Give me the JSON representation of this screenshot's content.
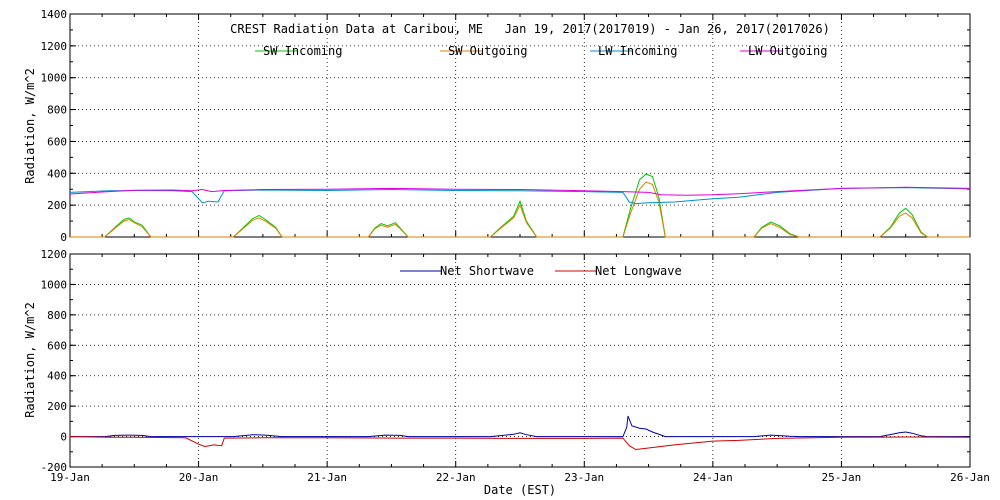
{
  "chart_data": [
    {
      "type": "line",
      "title": "CREST Radiation Data at Caribou, ME   Jan 19, 2017(2017019) - Jan 26, 2017(2017026)",
      "ylabel": "Radiation, W/m^2",
      "xlabel": "",
      "xlim": [
        0,
        7
      ],
      "ylim": [
        0,
        1400
      ],
      "yticks": [
        "0",
        "200",
        "400",
        "600",
        "800",
        "1000",
        "1200",
        "1400"
      ],
      "grid": true,
      "legend": "top, two rows in columns",
      "series": [
        {
          "name": "SW Incoming",
          "color": "#00c800",
          "points": [
            [
              0,
              0
            ],
            [
              0.27,
              0
            ],
            [
              0.35,
              60
            ],
            [
              0.42,
              110
            ],
            [
              0.46,
              120
            ],
            [
              0.5,
              95
            ],
            [
              0.56,
              75
            ],
            [
              0.63,
              0
            ],
            [
              1.27,
              0
            ],
            [
              1.35,
              60
            ],
            [
              1.42,
              115
            ],
            [
              1.47,
              135
            ],
            [
              1.52,
              110
            ],
            [
              1.6,
              60
            ],
            [
              1.65,
              0
            ],
            [
              2.32,
              0
            ],
            [
              2.37,
              55
            ],
            [
              2.42,
              85
            ],
            [
              2.47,
              70
            ],
            [
              2.53,
              90
            ],
            [
              2.57,
              55
            ],
            [
              2.63,
              0
            ],
            [
              3.27,
              0
            ],
            [
              3.35,
              60
            ],
            [
              3.45,
              130
            ],
            [
              3.5,
              225
            ],
            [
              3.55,
              100
            ],
            [
              3.63,
              0
            ],
            [
              4.3,
              0
            ],
            [
              4.36,
              180
            ],
            [
              4.43,
              360
            ],
            [
              4.48,
              395
            ],
            [
              4.53,
              380
            ],
            [
              4.58,
              250
            ],
            [
              4.63,
              0
            ],
            [
              5.32,
              0
            ],
            [
              5.38,
              60
            ],
            [
              5.45,
              95
            ],
            [
              5.52,
              70
            ],
            [
              5.6,
              20
            ],
            [
              5.67,
              0
            ],
            [
              6.3,
              0
            ],
            [
              6.38,
              60
            ],
            [
              6.45,
              150
            ],
            [
              6.5,
              180
            ],
            [
              6.55,
              140
            ],
            [
              6.62,
              30
            ],
            [
              6.67,
              0
            ],
            [
              7,
              0
            ]
          ]
        },
        {
          "name": "SW Outgoing",
          "color": "#e08000",
          "points": [
            [
              0,
              0
            ],
            [
              0.27,
              0
            ],
            [
              0.35,
              55
            ],
            [
              0.42,
              100
            ],
            [
              0.46,
              110
            ],
            [
              0.5,
              90
            ],
            [
              0.56,
              65
            ],
            [
              0.63,
              0
            ],
            [
              1.27,
              0
            ],
            [
              1.35,
              55
            ],
            [
              1.42,
              105
            ],
            [
              1.47,
              120
            ],
            [
              1.52,
              100
            ],
            [
              1.6,
              55
            ],
            [
              1.65,
              0
            ],
            [
              2.32,
              0
            ],
            [
              2.37,
              50
            ],
            [
              2.42,
              75
            ],
            [
              2.47,
              60
            ],
            [
              2.53,
              80
            ],
            [
              2.57,
              50
            ],
            [
              2.63,
              0
            ],
            [
              3.27,
              0
            ],
            [
              3.35,
              55
            ],
            [
              3.45,
              120
            ],
            [
              3.5,
              200
            ],
            [
              3.55,
              90
            ],
            [
              3.63,
              0
            ],
            [
              4.3,
              0
            ],
            [
              4.36,
              150
            ],
            [
              4.43,
              300
            ],
            [
              4.48,
              345
            ],
            [
              4.53,
              330
            ],
            [
              4.58,
              220
            ],
            [
              4.63,
              0
            ],
            [
              5.32,
              0
            ],
            [
              5.38,
              55
            ],
            [
              5.45,
              85
            ],
            [
              5.52,
              60
            ],
            [
              5.6,
              15
            ],
            [
              5.67,
              0
            ],
            [
              6.3,
              0
            ],
            [
              6.38,
              55
            ],
            [
              6.45,
              130
            ],
            [
              6.5,
              150
            ],
            [
              6.55,
              120
            ],
            [
              6.62,
              25
            ],
            [
              6.67,
              0
            ],
            [
              7,
              0
            ]
          ]
        },
        {
          "name": "LW Incoming",
          "color": "#0090d0",
          "points": [
            [
              0,
              280
            ],
            [
              0.3,
              290
            ],
            [
              0.5,
              292
            ],
            [
              0.8,
              290
            ],
            [
              0.95,
              285
            ],
            [
              1.03,
              215
            ],
            [
              1.08,
              225
            ],
            [
              1.15,
              220
            ],
            [
              1.2,
              290
            ],
            [
              1.5,
              295
            ],
            [
              2,
              292
            ],
            [
              2.5,
              298
            ],
            [
              3,
              292
            ],
            [
              3.5,
              290
            ],
            [
              4,
              285
            ],
            [
              4.3,
              280
            ],
            [
              4.35,
              220
            ],
            [
              4.4,
              210
            ],
            [
              4.5,
              215
            ],
            [
              4.7,
              220
            ],
            [
              5,
              240
            ],
            [
              5.2,
              250
            ],
            [
              5.5,
              280
            ],
            [
              6,
              305
            ],
            [
              6.5,
              310
            ],
            [
              7,
              302
            ]
          ]
        },
        {
          "name": "LW Outgoing",
          "color": "#e000e0",
          "points": [
            [
              0,
              270
            ],
            [
              0.3,
              285
            ],
            [
              0.5,
              293
            ],
            [
              0.8,
              295
            ],
            [
              0.95,
              290
            ],
            [
              1.03,
              298
            ],
            [
              1.1,
              285
            ],
            [
              1.2,
              292
            ],
            [
              1.5,
              298
            ],
            [
              2,
              300
            ],
            [
              2.5,
              305
            ],
            [
              3,
              300
            ],
            [
              3.5,
              298
            ],
            [
              4,
              290
            ],
            [
              4.3,
              285
            ],
            [
              4.5,
              280
            ],
            [
              4.6,
              265
            ],
            [
              4.8,
              262
            ],
            [
              5,
              265
            ],
            [
              5.2,
              272
            ],
            [
              5.5,
              285
            ],
            [
              6,
              305
            ],
            [
              6.5,
              312
            ],
            [
              7,
              305
            ]
          ]
        }
      ]
    },
    {
      "type": "line",
      "title": "",
      "ylabel": "Radiation, W/m^2",
      "xlabel": "Date (EST)",
      "xlim": [
        0,
        7
      ],
      "ylim": [
        -200,
        1200
      ],
      "yticks": [
        "-200",
        "0",
        "200",
        "400",
        "600",
        "800",
        "1000",
        "1200"
      ],
      "xticks": [
        "19-Jan",
        "20-Jan",
        "21-Jan",
        "22-Jan",
        "23-Jan",
        "24-Jan",
        "25-Jan",
        "26-Jan"
      ],
      "grid": true,
      "legend": "top-center",
      "series": [
        {
          "name": "Net Shortwave",
          "color": "#0000b0",
          "points": [
            [
              0,
              0
            ],
            [
              0.27,
              0
            ],
            [
              0.35,
              8
            ],
            [
              0.46,
              10
            ],
            [
              0.56,
              8
            ],
            [
              0.63,
              0
            ],
            [
              1.27,
              0
            ],
            [
              1.42,
              12
            ],
            [
              1.52,
              10
            ],
            [
              1.65,
              0
            ],
            [
              2.32,
              0
            ],
            [
              2.45,
              10
            ],
            [
              2.57,
              8
            ],
            [
              2.63,
              0
            ],
            [
              3.27,
              0
            ],
            [
              3.45,
              15
            ],
            [
              3.5,
              25
            ],
            [
              3.55,
              12
            ],
            [
              3.63,
              0
            ],
            [
              4.3,
              0
            ],
            [
              4.33,
              60
            ],
            [
              4.34,
              135
            ],
            [
              4.37,
              70
            ],
            [
              4.43,
              55
            ],
            [
              4.48,
              50
            ],
            [
              4.53,
              30
            ],
            [
              4.6,
              10
            ],
            [
              4.63,
              0
            ],
            [
              5.32,
              0
            ],
            [
              5.45,
              10
            ],
            [
              5.6,
              2
            ],
            [
              5.67,
              0
            ],
            [
              6.3,
              0
            ],
            [
              6.45,
              25
            ],
            [
              6.5,
              30
            ],
            [
              6.55,
              22
            ],
            [
              6.62,
              5
            ],
            [
              6.67,
              0
            ],
            [
              7,
              0
            ]
          ]
        },
        {
          "name": "Net Longwave",
          "color": "#d00000",
          "points": [
            [
              0,
              0
            ],
            [
              0.3,
              -5
            ],
            [
              0.5,
              -5
            ],
            [
              0.9,
              -8
            ],
            [
              1.0,
              -50
            ],
            [
              1.05,
              -65
            ],
            [
              1.12,
              -55
            ],
            [
              1.18,
              -60
            ],
            [
              1.2,
              -10
            ],
            [
              1.5,
              -8
            ],
            [
              2,
              -8
            ],
            [
              2.5,
              -10
            ],
            [
              3,
              -10
            ],
            [
              3.5,
              -12
            ],
            [
              4,
              -12
            ],
            [
              4.3,
              -10
            ],
            [
              4.35,
              -60
            ],
            [
              4.4,
              -85
            ],
            [
              4.5,
              -75
            ],
            [
              4.7,
              -55
            ],
            [
              5,
              -30
            ],
            [
              5.2,
              -25
            ],
            [
              5.5,
              -12
            ],
            [
              6,
              -5
            ],
            [
              6.5,
              -3
            ],
            [
              7,
              -5
            ]
          ]
        }
      ]
    }
  ]
}
